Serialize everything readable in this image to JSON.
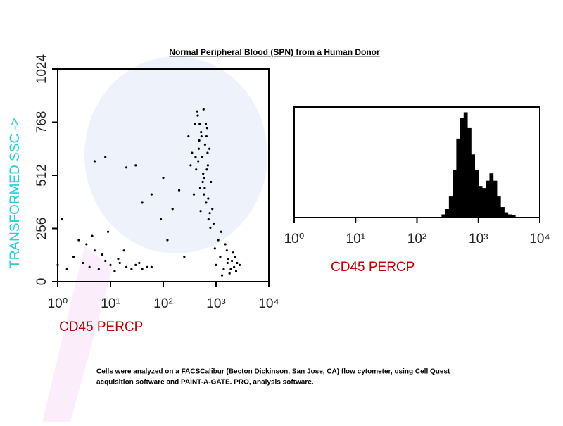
{
  "title": "Normal Peripheral Blood (SPN) from a Human Donor",
  "caption": [
    "Cells were analyzed on a FACSCalibur (Becton Dickinson, San Jose, CA) flow cytometer, using Cell Quest",
    "acquisition software and PAINT-A-GATE. PRO, analysis software."
  ],
  "chart_data": [
    {
      "type": "scatter",
      "x_label": "CD45 PERCP",
      "y_label": "TRANSFORMED SSC ->",
      "xscale": "log",
      "color": "#000000",
      "xlim": [
        1,
        10000
      ],
      "xticks": [
        {
          "value": 1,
          "label": "10⁰"
        },
        {
          "value": 10,
          "label": "10¹"
        },
        {
          "value": 100,
          "label": "10²"
        },
        {
          "value": 1000,
          "label": "10³"
        },
        {
          "value": 10000,
          "label": "10⁴"
        }
      ],
      "ylim": [
        0,
        1024
      ],
      "yticks": [
        0,
        256,
        512,
        768,
        1024
      ],
      "x": [
        300,
        350,
        400,
        420,
        450,
        480,
        500,
        520,
        550,
        580,
        600,
        620,
        650,
        680,
        700,
        720,
        750,
        800,
        850,
        900,
        380,
        460,
        530,
        610,
        690,
        440,
        510,
        570,
        640,
        710,
        330,
        470,
        560,
        660,
        760,
        410,
        490,
        590,
        670,
        780,
        1000,
        1200,
        1400,
        1600,
        1800,
        2000,
        2200,
        2500,
        1100,
        1300,
        1500,
        1700,
        1900,
        2100,
        2400,
        2800,
        1250,
        1650,
        2300,
        950,
        1,
        1.5,
        2,
        3,
        4,
        5,
        6,
        8,
        10,
        12,
        15,
        20,
        25,
        30,
        40,
        50,
        2.5,
        3.5,
        7,
        9,
        14,
        18,
        35,
        60,
        1.2,
        4.5,
        5,
        8,
        30,
        60,
        100,
        150,
        200,
        90,
        40,
        20,
        120,
        250
      ],
      "y": [
        700,
        620,
        760,
        540,
        800,
        680,
        450,
        720,
        600,
        830,
        500,
        660,
        380,
        740,
        560,
        300,
        640,
        480,
        350,
        280,
        420,
        580,
        700,
        450,
        620,
        820,
        340,
        520,
        760,
        400,
        560,
        640,
        480,
        700,
        330,
        600,
        760,
        420,
        540,
        260,
        80,
        120,
        60,
        150,
        40,
        100,
        70,
        90,
        200,
        30,
        180,
        110,
        60,
        140,
        50,
        80,
        240,
        90,
        120,
        160,
        80,
        60,
        120,
        90,
        70,
        150,
        60,
        100,
        80,
        50,
        90,
        70,
        60,
        80,
        60,
        70,
        200,
        180,
        130,
        240,
        110,
        150,
        90,
        70,
        300,
        220,
        580,
        600,
        560,
        420,
        500,
        350,
        440,
        300,
        380,
        550,
        200,
        120
      ]
    },
    {
      "type": "histogram",
      "x_label": "CD45 PERCP",
      "xscale": "log",
      "color": "#000000",
      "xlim": [
        1,
        10000
      ],
      "xticks": [
        {
          "value": 1,
          "label": "10⁰"
        },
        {
          "value": 10,
          "label": "10¹"
        },
        {
          "value": 100,
          "label": "10²"
        },
        {
          "value": 1000,
          "label": "10³"
        },
        {
          "value": 10000,
          "label": "10⁴"
        }
      ],
      "ylim": [
        0,
        105
      ],
      "bins": [
        251,
        288,
        331,
        380,
        437,
        501,
        575,
        661,
        759,
        871,
        1000,
        1148,
        1318,
        1514,
        1738,
        1995,
        2291,
        2630,
        3020,
        3467,
        3981
      ],
      "values": [
        3,
        8,
        20,
        45,
        75,
        95,
        100,
        85,
        60,
        45,
        30,
        28,
        35,
        42,
        35,
        20,
        10,
        5,
        3,
        2
      ]
    }
  ]
}
